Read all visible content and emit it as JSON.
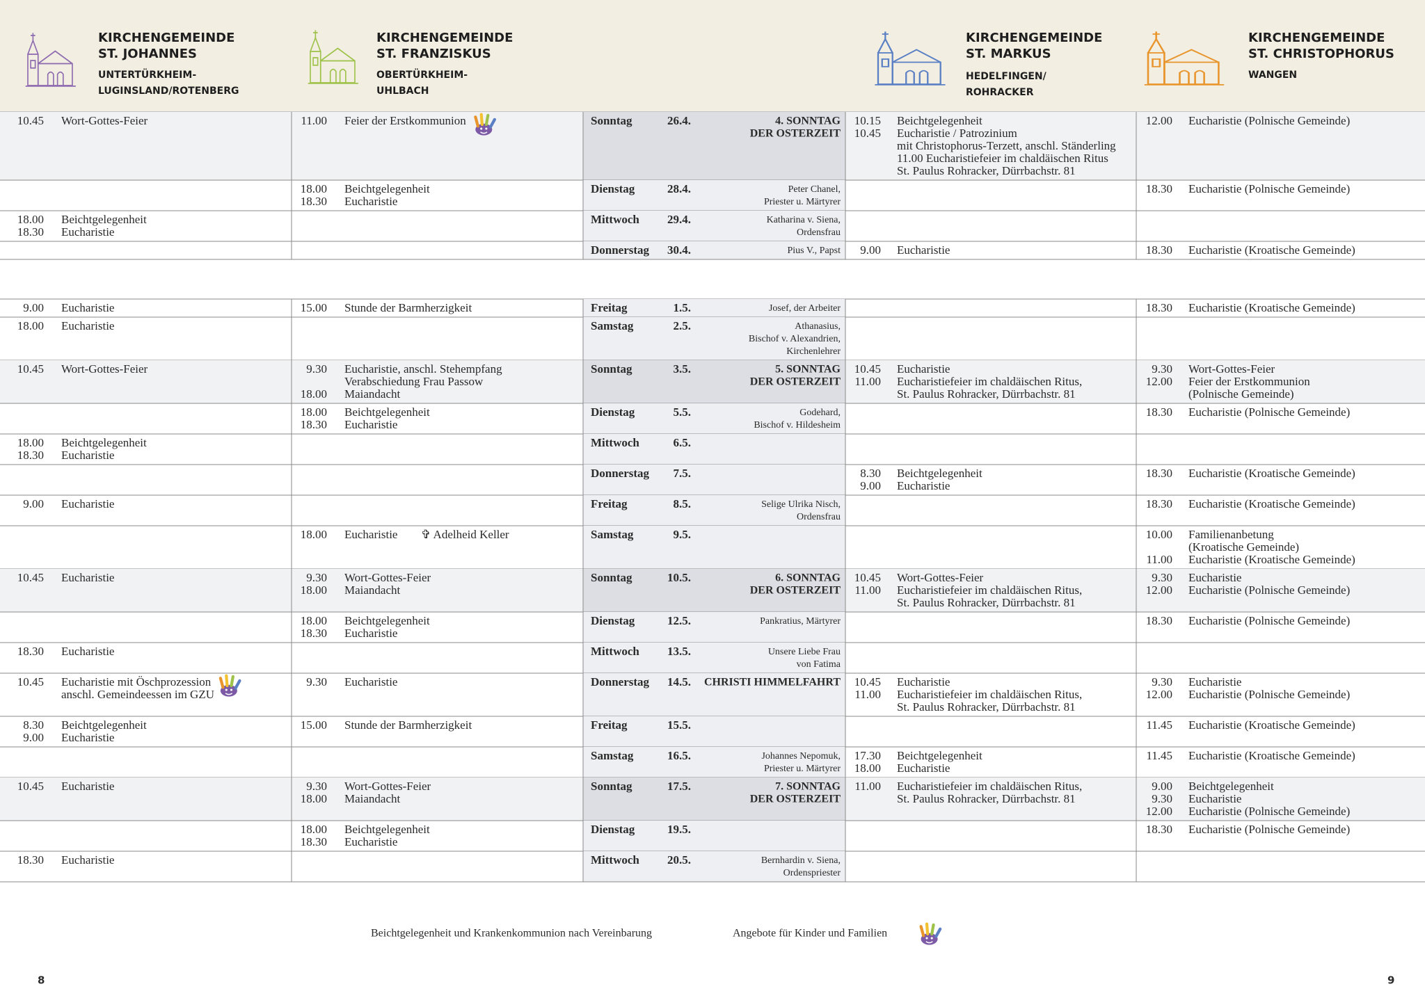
{
  "parishes": [
    {
      "line1": "KIRCHENGEMEINDE",
      "line2": "ST. JOHANNES",
      "sub": [
        "UNTERTÜRKHEIM-",
        "LUGINSLAND/ROTENBERG"
      ]
    },
    {
      "line1": "KIRCHENGEMEINDE",
      "line2": "ST. FRANZISKUS",
      "sub": [
        "OBERTÜRKHEIM-",
        "UHLBACH"
      ]
    },
    {
      "line1": "KIRCHENGEMEINDE",
      "line2": "ST. MARKUS",
      "sub": [
        "HEDELFINGEN/",
        "ROHRACKER"
      ]
    },
    {
      "line1": "KIRCHENGEMEINDE",
      "line2": "ST. CHRISTOPHORUS",
      "sub": [
        "WANGEN"
      ]
    }
  ],
  "sections": [
    [
      {
        "day": "Sonntag",
        "date": "26.4.",
        "feast": [
          "4. SONNTAG",
          "DER OSTERZEIT"
        ],
        "highlight": true,
        "holiday": true,
        "entries": [
          [
            {
              "time": "10.45",
              "text": "Wort-Gottes-Feier"
            }
          ],
          [
            {
              "time": "11.00",
              "text": "Feier der Erstkommunion",
              "kids": true
            }
          ],
          [
            {
              "time": "10.15",
              "text": "Beichtgelegenheit"
            },
            {
              "time": "10.45",
              "text": "Eucharistie  / Patrozinium"
            },
            {
              "text": "mit Christophorus-Terzett, anschl. Ständerling"
            },
            {
              "text": "11.00    Eucharistiefeier im chaldäischen Ritus"
            },
            {
              "text": "St. Paulus Rohracker, Dürrbachstr. 81"
            }
          ],
          [
            {
              "time": "12.00",
              "text": "Eucharistie (Polnische Gemeinde)"
            }
          ]
        ]
      },
      {
        "day": "Dienstag",
        "date": "28.4.",
        "feast": [
          "Peter Chanel,",
          "Priester u. Märtyrer"
        ],
        "entries": [
          [],
          [
            {
              "time": "18.00",
              "text": "Beichtgelegenheit"
            },
            {
              "time": "18.30",
              "text": "Eucharistie"
            }
          ],
          [],
          [
            {
              "time": "18.30",
              "text": "Eucharistie (Polnische Gemeinde)"
            }
          ]
        ]
      },
      {
        "day": "Mittwoch",
        "date": "29.4.",
        "feast": [
          "Katharina v. Siena,",
          "Ordensfrau"
        ],
        "entries": [
          [
            {
              "time": "18.00",
              "text": "Beichtgelegenheit"
            },
            {
              "time": "18.30",
              "text": "Eucharistie"
            }
          ],
          [],
          [],
          []
        ]
      },
      {
        "day": "Donnerstag",
        "date": "30.4.",
        "feast": [
          "Pius V., Papst"
        ],
        "entries": [
          [],
          [],
          [
            {
              "time": "9.00",
              "text": "Eucharistie"
            }
          ],
          [
            {
              "time": "18.30",
              "text": "Eucharistie  (Kroatische Gemeinde)"
            }
          ]
        ]
      }
    ],
    [
      {
        "day": "Freitag",
        "date": "1.5.",
        "feast": [
          "Josef, der Arbeiter"
        ],
        "entries": [
          [
            {
              "time": "9.00",
              "text": "Eucharistie"
            }
          ],
          [
            {
              "time": "15.00",
              "text": "Stunde der Barmherzigkeit"
            }
          ],
          [],
          [
            {
              "time": "18.30",
              "text": "Eucharistie (Kroatische Gemeinde)"
            }
          ]
        ]
      },
      {
        "day": "Samstag",
        "date": "2.5.",
        "feast": [
          "Athanasius,",
          "Bischof v. Alexandrien,",
          "Kirchenlehrer"
        ],
        "entries": [
          [
            {
              "time": "18.00",
              "text": "Eucharistie"
            }
          ],
          [],
          [],
          []
        ]
      },
      {
        "day": "Sonntag",
        "date": "3.5.",
        "feast": [
          "5. SONNTAG",
          "DER OSTERZEIT"
        ],
        "highlight": true,
        "holiday": true,
        "entries": [
          [
            {
              "time": "10.45",
              "text": "Wort-Gottes-Feier"
            }
          ],
          [
            {
              "time": "9.30",
              "text": "Eucharistie, anschl. Stehempfang"
            },
            {
              "text": "Verabschiedung Frau Passow"
            },
            {
              "time": "18.00",
              "text": "Maiandacht"
            }
          ],
          [
            {
              "time": "10.45",
              "text": "Eucharistie"
            },
            {
              "time": "11.00",
              "text": "Eucharistiefeier im chaldäischen Ritus,"
            },
            {
              "text": "St. Paulus Rohracker, Dürrbachstr. 81"
            }
          ],
          [
            {
              "time": "9.30",
              "text": "Wort-Gottes-Feier"
            },
            {
              "time": "12.00",
              "text": "Feier der Erstkommunion"
            },
            {
              "text": "(Polnische Gemeinde)"
            }
          ]
        ]
      },
      {
        "day": "Dienstag",
        "date": "5.5.",
        "feast": [
          "Godehard,",
          "Bischof v. Hildesheim"
        ],
        "entries": [
          [],
          [
            {
              "time": "18.00",
              "text": "Beichtgelegenheit"
            },
            {
              "time": "18.30",
              "text": "Eucharistie"
            }
          ],
          [],
          [
            {
              "time": "18.30",
              "text": "Eucharistie (Polnische Gemeinde)"
            }
          ]
        ]
      },
      {
        "day": "Mittwoch",
        "date": "6.5.",
        "entries": [
          [
            {
              "time": "18.00",
              "text": "Beichtgelegenheit"
            },
            {
              "time": "18.30",
              "text": "Eucharistie"
            }
          ],
          [],
          [],
          []
        ]
      },
      {
        "day": "Donnerstag",
        "date": "7.5.",
        "entries": [
          [],
          [],
          [
            {
              "time": "8.30",
              "text": "Beichtgelegenheit"
            },
            {
              "time": "9.00",
              "text": "Eucharistie"
            }
          ],
          [
            {
              "time": "18.30",
              "text": "Eucharistie (Kroatische Gemeinde)"
            }
          ]
        ]
      },
      {
        "day": "Freitag",
        "date": "8.5.",
        "feast": [
          "Selige Ulrika Nisch,",
          "Ordensfrau"
        ],
        "entries": [
          [
            {
              "time": "9.00",
              "text": "Eucharistie"
            }
          ],
          [],
          [],
          [
            {
              "time": "18.30",
              "text": "Eucharistie (Kroatische Gemeinde)"
            }
          ]
        ]
      },
      {
        "day": "Samstag",
        "date": "9.5.",
        "entries": [
          [],
          [
            {
              "time": "18.00",
              "text": "Eucharistie",
              "memorial": "✞ Adelheid Keller"
            }
          ],
          [],
          [
            {
              "time": "10.00",
              "text": "Familienanbetung"
            },
            {
              "text": "(Kroatische Gemeinde)"
            },
            {
              "time": "11.00",
              "text": "Eucharistie (Kroatische Gemeinde)"
            }
          ]
        ]
      },
      {
        "day": "Sonntag",
        "date": "10.5.",
        "feast": [
          "6. SONNTAG",
          "DER OSTERZEIT"
        ],
        "highlight": true,
        "holiday": true,
        "entries": [
          [
            {
              "time": "10.45",
              "text": "Eucharistie"
            }
          ],
          [
            {
              "time": "9.30",
              "text": "Wort-Gottes-Feier"
            },
            {
              "time": "18.00",
              "text": "Maiandacht"
            }
          ],
          [
            {
              "time": "10.45",
              "text": "Wort-Gottes-Feier"
            },
            {
              "time": "11.00",
              "text": "Eucharistiefeier im chaldäischen Ritus,"
            },
            {
              "text": "St. Paulus Rohracker, Dürrbachstr. 81"
            }
          ],
          [
            {
              "time": "9.30",
              "text": "Eucharistie"
            },
            {
              "time": "12.00",
              "text": "Eucharistie (Polnische Gemeinde)"
            }
          ]
        ]
      },
      {
        "day": "Dienstag",
        "date": "12.5.",
        "feast": [
          "Pankratius, Märtyrer"
        ],
        "entries": [
          [],
          [
            {
              "time": "18.00",
              "text": "Beichtgelegenheit"
            },
            {
              "time": "18.30",
              "text": "Eucharistie"
            }
          ],
          [],
          [
            {
              "time": "18.30",
              "text": "Eucharistie (Polnische Gemeinde)"
            }
          ]
        ]
      },
      {
        "day": "Mittwoch",
        "date": "13.5.",
        "feast": [
          "Unsere Liebe Frau",
          "von Fatima"
        ],
        "entries": [
          [
            {
              "time": "18.30",
              "text": "Eucharistie"
            }
          ],
          [],
          [],
          []
        ]
      },
      {
        "day": "Donnerstag",
        "date": "14.5.",
        "feast": [
          "CHRISTI HIMMELFAHRT"
        ],
        "holiday": true,
        "entries": [
          [
            {
              "time": "10.45",
              "text": "Eucharistie mit Öschprozession",
              "kids": true
            },
            {
              "text": "anschl. Gemeindeessen im GZU"
            }
          ],
          [
            {
              "time": "9.30",
              "text": "Eucharistie"
            }
          ],
          [
            {
              "time": "10.45",
              "text": "Eucharistie"
            },
            {
              "time": "11.00",
              "text": "Eucharistiefeier im chaldäischen Ritus,"
            },
            {
              "text": "St. Paulus Rohracker, Dürrbachstr. 81"
            }
          ],
          [
            {
              "time": "9.30",
              "text": "Eucharistie"
            },
            {
              "time": "12.00",
              "text": "Eucharistie (Polnische Gemeinde)"
            }
          ]
        ]
      },
      {
        "day": "Freitag",
        "date": "15.5.",
        "entries": [
          [
            {
              "time": "8.30",
              "text": "Beichtgelegenheit"
            },
            {
              "time": "9.00",
              "text": "Eucharistie"
            }
          ],
          [
            {
              "time": "15.00",
              "text": "Stunde der Barmherzigkeit"
            }
          ],
          [],
          [
            {
              "time": "11.45",
              "text": "Eucharistie (Kroatische Gemeinde)"
            }
          ]
        ]
      },
      {
        "day": "Samstag",
        "date": "16.5.",
        "feast": [
          "Johannes Nepomuk,",
          "Priester u. Märtyrer"
        ],
        "entries": [
          [],
          [],
          [
            {
              "time": "17.30",
              "text": "Beichtgelegenheit"
            },
            {
              "time": "18.00",
              "text": "Eucharistie"
            }
          ],
          [
            {
              "time": "11.45",
              "text": "Eucharistie (Kroatische Gemeinde)"
            }
          ]
        ]
      },
      {
        "day": "Sonntag",
        "date": "17.5.",
        "feast": [
          "7. SONNTAG",
          "DER OSTERZEIT"
        ],
        "highlight": true,
        "holiday": true,
        "entries": [
          [
            {
              "time": "10.45",
              "text": "Eucharistie"
            }
          ],
          [
            {
              "time": "9.30",
              "text": "Wort-Gottes-Feier"
            },
            {
              "time": "18.00",
              "text": "Maiandacht"
            }
          ],
          [
            {
              "time": "11.00",
              "text": "Eucharistiefeier im chaldäischen Ritus,"
            },
            {
              "text": "St. Paulus Rohracker, Dürrbachstr. 81"
            }
          ],
          [
            {
              "time": "9.00",
              "text": "Beichtgelegenheit"
            },
            {
              "time": "9.30",
              "text": "Eucharistie"
            },
            {
              "time": "12.00",
              "text": "Eucharistie (Polnische Gemeinde)"
            }
          ]
        ]
      },
      {
        "day": "Dienstag",
        "date": "19.5.",
        "entries": [
          [],
          [
            {
              "time": "18.00",
              "text": "Beichtgelegenheit"
            },
            {
              "time": "18.30",
              "text": "Eucharistie"
            }
          ],
          [],
          [
            {
              "time": "18.30",
              "text": "Eucharistie (Polnische Gemeinde)"
            }
          ]
        ]
      },
      {
        "day": "Mittwoch",
        "date": "20.5.",
        "feast": [
          "Bernhardin v. Siena,",
          "Ordenspriester"
        ],
        "entries": [
          [
            {
              "time": "18.30",
              "text": "Eucharistie"
            }
          ],
          [],
          [],
          []
        ]
      }
    ]
  ],
  "footer": {
    "note": "Beichtgelegenheit und Krankenkommunion nach Vereinbarung",
    "kids_legend": "Angebote für Kinder und Familien"
  },
  "page_left": "8",
  "page_right": "9"
}
